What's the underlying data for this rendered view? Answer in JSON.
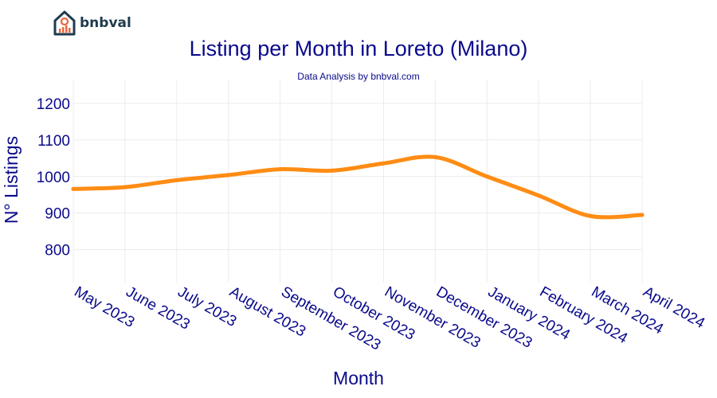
{
  "brand": {
    "name": "bnbval",
    "icon": "house-chart-icon",
    "colors": {
      "house": "#1f3b4d",
      "accent": "#e8663d"
    }
  },
  "chart_data": {
    "type": "line",
    "title": "Listing per Month in Loreto (Milano)",
    "subtitle": "Data Analysis by bnbval.com",
    "xlabel": "Month",
    "ylabel": "N° Listings",
    "categories": [
      "May 2023",
      "June 2023",
      "July 2023",
      "August 2023",
      "September 2023",
      "October 2023",
      "November 2023",
      "December 2023",
      "January 2024",
      "February 2024",
      "March 2024",
      "April 2024"
    ],
    "series": [
      {
        "values": [
          966,
          971,
          990,
          1004,
          1020,
          1016,
          1036,
          1053,
          1000,
          948,
          892,
          895
        ],
        "color": "#ff8c14"
      }
    ],
    "y_ticks": [
      800,
      900,
      1000,
      1100,
      1200
    ],
    "ylim": [
      710,
      1265
    ],
    "grid": true,
    "curve": "smooth"
  }
}
